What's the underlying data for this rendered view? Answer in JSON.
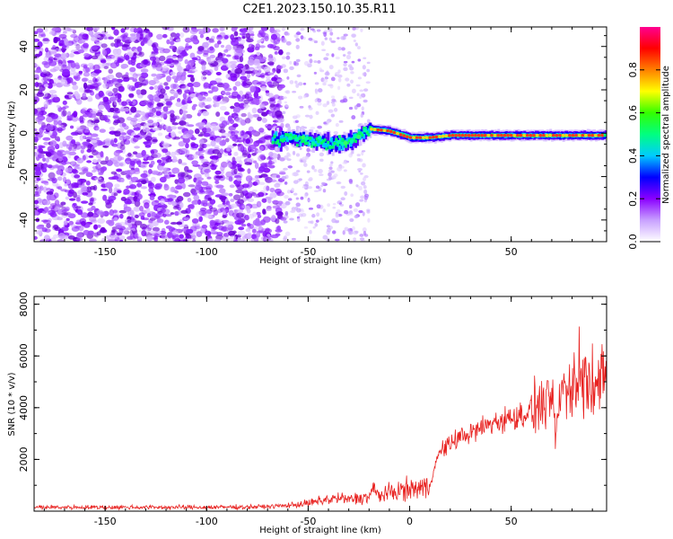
{
  "title": "C2E1.2023.150.10.35.R11",
  "colors": {
    "snr_line": "#e8211f",
    "scatter_purple": "#7c00f0",
    "frame": "#000000"
  },
  "chart_data": [
    {
      "type": "heatmap",
      "xlabel": "Height of straight line (km)",
      "ylabel": "Frequency (Hz)",
      "xlim": [
        -185,
        97
      ],
      "ylim": [
        -50,
        49
      ],
      "xticks": [
        -150,
        -100,
        -50,
        0,
        50
      ],
      "xtick_labels": [
        "-150",
        "-100",
        "-50",
        "0",
        "50"
      ],
      "yticks": [
        -40,
        -20,
        0,
        20,
        40
      ],
      "ytick_labels": [
        "-40",
        "-20",
        "0",
        "20",
        "40"
      ],
      "colorbar": {
        "label": "Normalized spectral amplitude",
        "range": [
          0,
          1
        ],
        "ticks": [
          0.0,
          0.2,
          0.4,
          0.6,
          0.8
        ],
        "tick_labels": [
          "0.0",
          "0.2",
          "0.4",
          "0.6",
          "0.8"
        ],
        "colors": [
          "#ffffff",
          "#c8a0ff",
          "#8a00ff",
          "#0000ff",
          "#00ccff",
          "#00ff80",
          "#33ff00",
          "#ffff00",
          "#ff8000",
          "#ff0000",
          "#ff0090"
        ]
      },
      "noise_region_x": [
        -185,
        -20
      ],
      "ridge": {
        "description_points_x": [
          -70,
          -60,
          -50,
          -40,
          -30,
          -20,
          -10,
          0,
          10,
          20,
          40,
          60,
          80,
          97
        ],
        "frequency_hz": [
          -4,
          -2,
          -3,
          -5,
          -4,
          2,
          1,
          -2,
          -2,
          -1,
          -1,
          -1,
          -1,
          -1
        ]
      }
    },
    {
      "type": "line",
      "xlabel": "Height of straight line (km)",
      "ylabel": "SNR (10 * v/v)",
      "xlim": [
        -185,
        97
      ],
      "ylim": [
        0,
        8300
      ],
      "xticks": [
        -150,
        -100,
        -50,
        0,
        50
      ],
      "xtick_labels": [
        "-150",
        "-100",
        "-50",
        "0",
        "50"
      ],
      "yticks": [
        2000,
        4000,
        6000,
        8000
      ],
      "ytick_labels": [
        "2000",
        "4000",
        "6000",
        "8000"
      ],
      "series": [
        {
          "x": [
            -185,
            -160,
            -140,
            -120,
            -100,
            -80,
            -70,
            -60,
            -50,
            -45,
            -40,
            -35,
            -30,
            -25,
            -20,
            -18,
            -15,
            -10,
            -5,
            0,
            5,
            10,
            12,
            15,
            20,
            25,
            30,
            35,
            40,
            45,
            50,
            55,
            60,
            65,
            70,
            72,
            75,
            80,
            85,
            90,
            97
          ],
          "y": [
            150,
            150,
            150,
            150,
            150,
            160,
            180,
            220,
            300,
            380,
            450,
            500,
            450,
            500,
            550,
            850,
            600,
            700,
            800,
            850,
            900,
            950,
            1700,
            2300,
            2600,
            2900,
            3000,
            3200,
            3400,
            3500,
            3600,
            3700,
            3900,
            4200,
            4300,
            3000,
            4800,
            4700,
            5200,
            4800,
            5200
          ]
        }
      ]
    }
  ]
}
